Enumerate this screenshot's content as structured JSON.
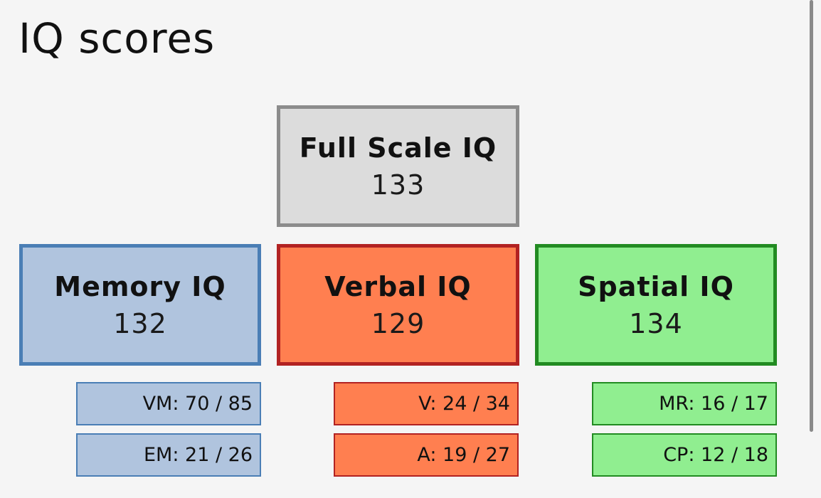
{
  "page": {
    "title": "IQ scores"
  },
  "colors": {
    "background": "#f5f5f5",
    "full_scale_fill": "#dcdcdc",
    "full_scale_border": "#8c8c8c",
    "memory_fill": "#b0c4de",
    "memory_border": "#4a7eb5",
    "verbal_fill": "#ff7f50",
    "verbal_border": "#b22222",
    "spatial_fill": "#90ee90",
    "spatial_border": "#228b22",
    "scrollbar": "#8a8a8a"
  },
  "full_scale": {
    "label": "Full Scale IQ",
    "value": "133"
  },
  "memory": {
    "label": "Memory IQ",
    "value": "132",
    "subtests": [
      {
        "text": "VM: 70 / 85"
      },
      {
        "text": "EM: 21 / 26"
      }
    ]
  },
  "verbal": {
    "label": "Verbal IQ",
    "value": "129",
    "subtests": [
      {
        "text": "V: 24 / 34"
      },
      {
        "text": "A: 19 / 27"
      }
    ]
  },
  "spatial": {
    "label": "Spatial IQ",
    "value": "134",
    "subtests": [
      {
        "text": "MR: 16 / 17"
      },
      {
        "text": "CP: 12 / 18"
      }
    ]
  }
}
